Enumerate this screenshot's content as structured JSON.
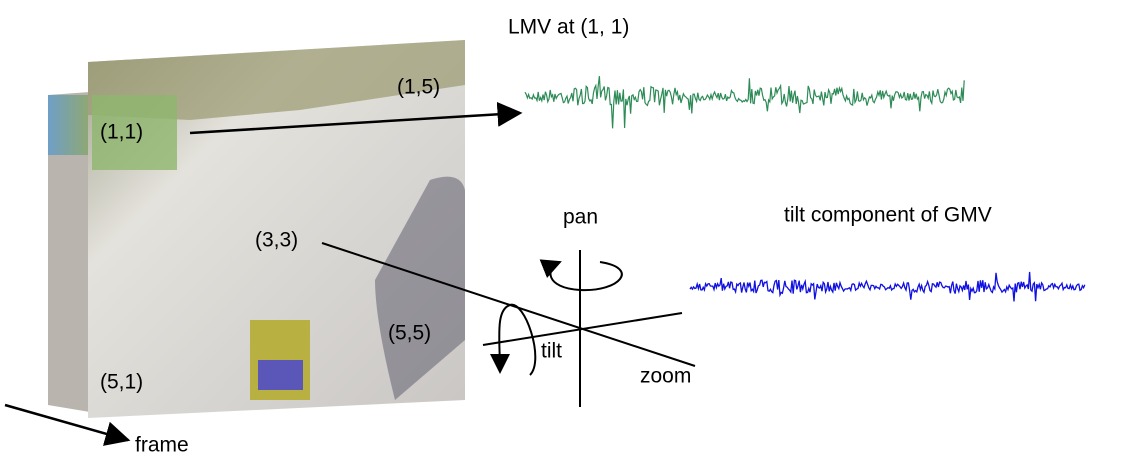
{
  "frames": {
    "block_labels": [
      "(1,1)",
      "(1,5)",
      "(3,3)",
      "(5,5)",
      "(5,1)"
    ],
    "axis_label": "frame"
  },
  "lmv": {
    "title": "LMV at (1, 1)"
  },
  "gmv": {
    "title": "tilt component of GMV"
  },
  "motion_axes": {
    "pan": "pan",
    "tilt": "tilt",
    "zoom": "zoom"
  }
}
